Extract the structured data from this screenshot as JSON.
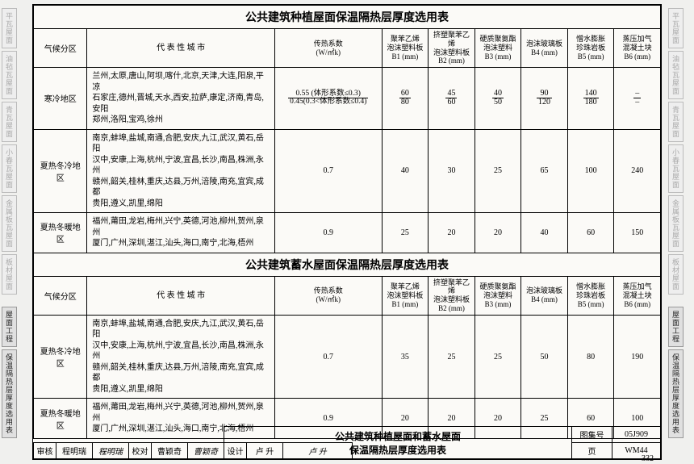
{
  "side_tabs_left": [
    "平瓦屋面",
    "油毡瓦屋面",
    "青瓦屋面",
    "小春瓦屋面",
    "金属板瓦屋面",
    "板材屋面",
    "屋面工程",
    "保温隔热层厚度选用表"
  ],
  "side_tabs_right": [
    "平瓦屋面",
    "油毡瓦屋面",
    "青瓦屋面",
    "小春瓦屋面",
    "金属板瓦屋面",
    "板材屋面",
    "屋面工程",
    "保温隔热层厚度选用表"
  ],
  "tables": [
    {
      "title": "公共建筑种植屋面保温隔热层厚度选用表",
      "headers": {
        "zone": "气候分区",
        "cities": "代 表 性 城 市",
        "coef_label": "传热系数",
        "coef_unit": "(W/㎡k)",
        "cols": [
          {
            "l1": "聚苯乙烯",
            "l2": "泡沫塑料板",
            "l3": "B1 (mm)"
          },
          {
            "l1": "挤塑聚苯乙烯",
            "l2": "泡沫塑料板",
            "l3": "B2 (mm)"
          },
          {
            "l1": "硬质聚氨酯",
            "l2": "泡沫塑料",
            "l3": "B3 (mm)"
          },
          {
            "l1": "泡沫玻璃板",
            "l2": "",
            "l3": "B4 (mm)"
          },
          {
            "l1": "憎水膨胀",
            "l2": "珍珠岩板",
            "l3": "B5 (mm)"
          },
          {
            "l1": "蒸压加气",
            "l2": "混凝土块",
            "l3": "B6 (mm)"
          }
        ]
      },
      "rows": [
        {
          "zone": "寒冷地区",
          "cities": "兰州,太原,唐山,阿坝,喀什,北京,天津,大连,阳泉,平凉\n石家庄,德州,晋城,天水,西安,拉萨,康定,济南,青岛,安阳\n郑州,洛阳,宝鸡,徐州",
          "coef_frac": {
            "num": "0.55 (体形系数≤0.3)",
            "den": "0.45(0.3<体形系数≤0.4)"
          },
          "vals": [
            {
              "f": {
                "n": "60",
                "d": "80"
              }
            },
            {
              "f": {
                "n": "45",
                "d": "60"
              }
            },
            {
              "f": {
                "n": "40",
                "d": "50"
              }
            },
            {
              "f": {
                "n": "90",
                "d": "120"
              }
            },
            {
              "f": {
                "n": "140",
                "d": "180"
              }
            },
            {
              "f": {
                "n": "–",
                "d": "–"
              }
            }
          ]
        },
        {
          "zone": "夏热冬冷地区",
          "cities": "南京,蚌埠,盐城,南通,合肥,安庆,九江,武汉,黄石,岳阳\n汉中,安康,上海,杭州,宁波,宜昌,长沙,南昌,株洲,永州\n赣州,韶关,桂林,重庆,达县,万州,涪陵,南充,宜宾,成都\n贵阳,遵义,凯里,绵阳",
          "coef": "0.7",
          "vals": [
            {
              "v": "40"
            },
            {
              "v": "30"
            },
            {
              "v": "25"
            },
            {
              "v": "65"
            },
            {
              "v": "100"
            },
            {
              "v": "240"
            }
          ]
        },
        {
          "zone": "夏热冬暖地区",
          "cities": "福州,莆田,龙岩,梅州,兴宁,英德,河池,柳州,贺州,泉州\n厦门,广州,深圳,湛江,汕头,海口,南宁,北海,梧州",
          "coef": "0.9",
          "vals": [
            {
              "v": "25"
            },
            {
              "v": "20"
            },
            {
              "v": "20"
            },
            {
              "v": "40"
            },
            {
              "v": "60"
            },
            {
              "v": "150"
            }
          ]
        }
      ]
    },
    {
      "title": "公共建筑蓄水屋面保温隔热层厚度选用表",
      "headers": "same",
      "rows": [
        {
          "zone": "夏热冬冷地区",
          "cities": "南京,蚌埠,盐城,南通,合肥,安庆,九江,武汉,黄石,岳阳\n汉中,安康,上海,杭州,宁波,宜昌,长沙,南昌,株洲,永州\n赣州,韶关,桂林,重庆,达县,万州,涪陵,南充,宜宾,成都\n贵阳,遵义,凯里,绵阳",
          "coef": "0.7",
          "vals": [
            {
              "v": "35"
            },
            {
              "v": "25"
            },
            {
              "v": "25"
            },
            {
              "v": "50"
            },
            {
              "v": "80"
            },
            {
              "v": "190"
            }
          ]
        },
        {
          "zone": "夏热冬暖地区",
          "cities": "福州,莆田,龙岩,梅州,兴宁,英德,河池,柳州,贺州,泉州\n厦门,广州,深圳,湛江,汕头,海口,南宁,北海,梧州",
          "coef": "0.9",
          "vals": [
            {
              "v": "20"
            },
            {
              "v": "20"
            },
            {
              "v": "20"
            },
            {
              "v": "25"
            },
            {
              "v": "60"
            },
            {
              "v": "100"
            }
          ]
        }
      ]
    }
  ],
  "footer": {
    "block_title_1": "公共建筑种植屋面和蓄水屋面",
    "block_title_2": "保温隔热层厚度选用表",
    "labels": {
      "shenhe": "审核",
      "jiaodui": "校对",
      "sheji": "设计",
      "tujihao": "图集号",
      "ye": "页"
    },
    "people": {
      "shenhe": "程明瑞",
      "shenhe_sig": "程明瑞",
      "jiaodui": "曹颖奇",
      "jiaodui_sig": "曹颖奇",
      "sheji": "卢 升",
      "sheji_sig": "卢 升"
    },
    "tujihao": "05J909",
    "ye": "WM44"
  },
  "page_number": "332",
  "colors": {
    "bg": "#f0f0ee",
    "paper": "#fbfaf7",
    "border": "#000000",
    "text": "#000000",
    "faded": "#aaaaaa"
  }
}
